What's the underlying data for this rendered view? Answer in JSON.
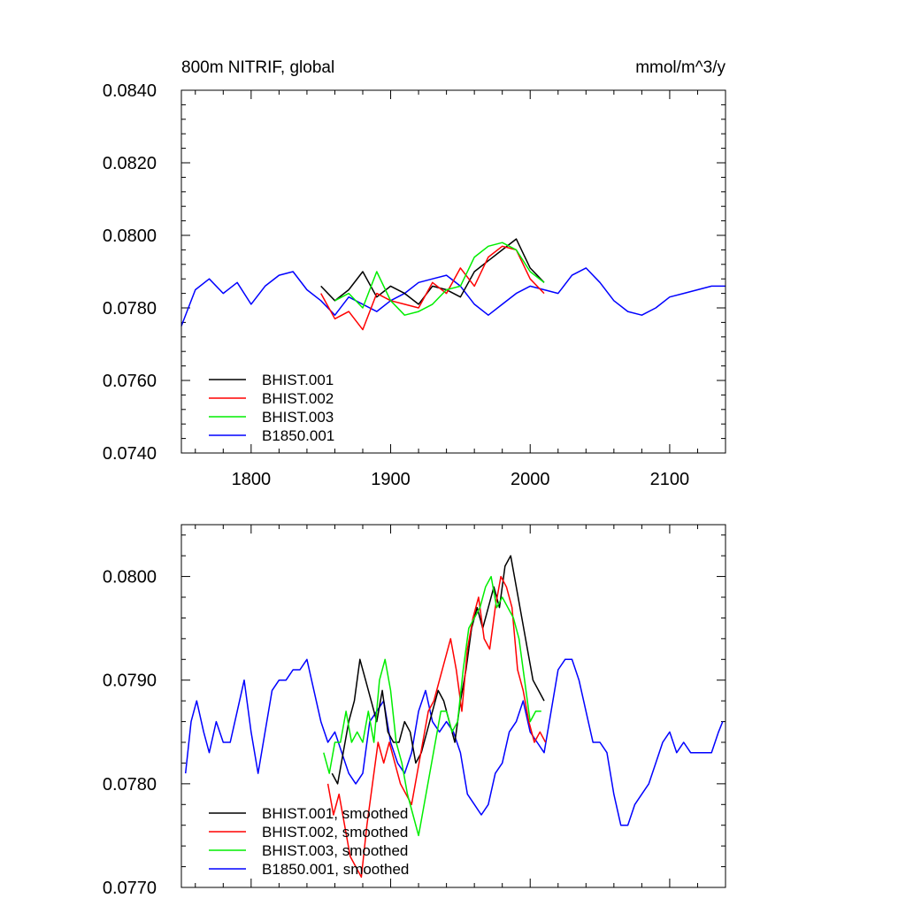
{
  "chart_data": [
    {
      "type": "line",
      "title": "800m NITRIF, global",
      "units": "mmol/m^3/y",
      "xlim": [
        1750,
        2140
      ],
      "ylim": [
        0.074,
        0.084
      ],
      "x_ticks": [
        1800,
        1900,
        2000,
        2100
      ],
      "x_tick_labels": [
        "1800",
        "1900",
        "2000",
        "2100"
      ],
      "y_ticks": [
        0.074,
        0.076,
        0.078,
        0.08,
        0.082,
        0.084
      ],
      "y_tick_labels": [
        "0.0740",
        "0.0760",
        "0.0780",
        "0.0800",
        "0.0820",
        "0.0840"
      ],
      "grid": false,
      "legend_position": "bottom-left",
      "series": [
        {
          "name": "B1850.001",
          "color": "#0000ff",
          "x": [
            1750,
            1760,
            1770,
            1780,
            1790,
            1800,
            1810,
            1820,
            1830,
            1840,
            1850,
            1860,
            1870,
            1880,
            1890,
            1900,
            1910,
            1920,
            1930,
            1940,
            1950,
            1960,
            1970,
            1980,
            1990,
            2000,
            2010,
            2020,
            2030,
            2040,
            2050,
            2060,
            2070,
            2080,
            2090,
            2100,
            2110,
            2120,
            2130,
            2140
          ],
          "y": [
            0.0775,
            0.0785,
            0.0788,
            0.0784,
            0.0787,
            0.0781,
            0.0786,
            0.0789,
            0.079,
            0.0785,
            0.0782,
            0.0778,
            0.0783,
            0.0781,
            0.0779,
            0.0782,
            0.0784,
            0.0787,
            0.0788,
            0.0789,
            0.0786,
            0.0781,
            0.0778,
            0.0781,
            0.0784,
            0.0786,
            0.0785,
            0.0784,
            0.0789,
            0.0791,
            0.0787,
            0.0782,
            0.0779,
            0.0778,
            0.078,
            0.0783,
            0.0784,
            0.0785,
            0.0786,
            0.0786
          ]
        },
        {
          "name": "BHIST.001",
          "color": "#000000",
          "x": [
            1850,
            1860,
            1870,
            1880,
            1890,
            1900,
            1910,
            1920,
            1930,
            1940,
            1950,
            1960,
            1970,
            1980,
            1990,
            2000,
            2010
          ],
          "y": [
            0.0786,
            0.0782,
            0.0785,
            0.079,
            0.0783,
            0.0786,
            0.0784,
            0.0781,
            0.0786,
            0.0785,
            0.0783,
            0.079,
            0.0793,
            0.0796,
            0.0799,
            0.0791,
            0.0787
          ]
        },
        {
          "name": "BHIST.002",
          "color": "#ff0000",
          "x": [
            1850,
            1860,
            1870,
            1880,
            1890,
            1900,
            1910,
            1920,
            1930,
            1940,
            1950,
            1960,
            1970,
            1980,
            1990,
            2000,
            2010
          ],
          "y": [
            0.0784,
            0.0777,
            0.0779,
            0.0774,
            0.0784,
            0.0782,
            0.0781,
            0.078,
            0.0787,
            0.0784,
            0.0791,
            0.0786,
            0.0794,
            0.0797,
            0.0796,
            0.0788,
            0.0784
          ]
        },
        {
          "name": "BHIST.003",
          "color": "#00ee00",
          "x": [
            1860,
            1870,
            1880,
            1890,
            1900,
            1910,
            1920,
            1930,
            1940,
            1950,
            1960,
            1970,
            1980,
            1990,
            2000,
            2010
          ],
          "y": [
            0.0782,
            0.0784,
            0.078,
            0.079,
            0.0782,
            0.0778,
            0.0779,
            0.0781,
            0.0785,
            0.0786,
            0.0794,
            0.0797,
            0.0798,
            0.0796,
            0.079,
            0.0787
          ]
        }
      ],
      "legend_entries": [
        {
          "label": "BHIST.001",
          "color": "#000000"
        },
        {
          "label": "BHIST.002",
          "color": "#ff0000"
        },
        {
          "label": "BHIST.003",
          "color": "#00ee00"
        },
        {
          "label": "B1850.001",
          "color": "#0000ff"
        }
      ]
    },
    {
      "type": "line",
      "xlim": [
        1750,
        2140
      ],
      "ylim": [
        0.077,
        0.0805
      ],
      "y_ticks": [
        0.077,
        0.078,
        0.079,
        0.08
      ],
      "y_tick_labels": [
        "0.0770",
        "0.0780",
        "0.0790",
        "0.0800"
      ],
      "x_ticks": [
        1800,
        1900,
        2000,
        2100
      ],
      "grid": false,
      "legend_position": "bottom-left",
      "series": [
        {
          "name": "B1850.001, smoothed",
          "color": "#0000ff",
          "x": [
            1753,
            1757,
            1761,
            1766,
            1770,
            1775,
            1780,
            1785,
            1790,
            1795,
            1800,
            1805,
            1810,
            1815,
            1820,
            1825,
            1830,
            1835,
            1840,
            1845,
            1850,
            1855,
            1860,
            1865,
            1870,
            1875,
            1880,
            1885,
            1890,
            1895,
            1900,
            1905,
            1910,
            1915,
            1920,
            1925,
            1930,
            1935,
            1940,
            1945,
            1950,
            1955,
            1960,
            1965,
            1970,
            1975,
            1980,
            1985,
            1990,
            1995,
            2000,
            2005,
            2010,
            2015,
            2020,
            2025,
            2030,
            2035,
            2040,
            2045,
            2050,
            2055,
            2060,
            2065,
            2070,
            2075,
            2080,
            2085,
            2090,
            2095,
            2100,
            2105,
            2110,
            2115,
            2120,
            2125,
            2130,
            2135,
            2138
          ],
          "y": [
            0.0781,
            0.0786,
            0.0788,
            0.0785,
            0.0783,
            0.0786,
            0.0784,
            0.0784,
            0.0787,
            0.079,
            0.0785,
            0.0781,
            0.0785,
            0.0789,
            0.079,
            0.079,
            0.0791,
            0.0791,
            0.0792,
            0.0789,
            0.0786,
            0.0784,
            0.0785,
            0.0783,
            0.0781,
            0.078,
            0.0781,
            0.0786,
            0.0787,
            0.0788,
            0.0784,
            0.0782,
            0.0781,
            0.0783,
            0.0787,
            0.0789,
            0.0786,
            0.0785,
            0.0786,
            0.0785,
            0.0783,
            0.0779,
            0.0778,
            0.0777,
            0.0778,
            0.0781,
            0.0782,
            0.0785,
            0.0786,
            0.0788,
            0.0785,
            0.0784,
            0.0783,
            0.0787,
            0.0791,
            0.0792,
            0.0792,
            0.079,
            0.0787,
            0.0784,
            0.0784,
            0.0783,
            0.0779,
            0.0776,
            0.0776,
            0.0778,
            0.0779,
            0.078,
            0.0782,
            0.0784,
            0.0785,
            0.0783,
            0.0784,
            0.0783,
            0.0783,
            0.0783,
            0.0783,
            0.0785,
            0.0786
          ]
        },
        {
          "name": "BHIST.001, smoothed",
          "color": "#000000",
          "x": [
            1858,
            1862,
            1866,
            1870,
            1874,
            1878,
            1882,
            1886,
            1890,
            1894,
            1898,
            1902,
            1906,
            1910,
            1914,
            1918,
            1922,
            1926,
            1930,
            1934,
            1938,
            1942,
            1946,
            1950,
            1954,
            1958,
            1962,
            1966,
            1970,
            1974,
            1978,
            1982,
            1986,
            1990,
            1994,
            1998,
            2002,
            2006,
            2010
          ],
          "y": [
            0.0781,
            0.078,
            0.0783,
            0.0786,
            0.0788,
            0.0792,
            0.079,
            0.0788,
            0.0786,
            0.0789,
            0.0785,
            0.0784,
            0.0784,
            0.0786,
            0.0785,
            0.0782,
            0.0783,
            0.0785,
            0.0787,
            0.0789,
            0.0788,
            0.0786,
            0.0784,
            0.0788,
            0.0791,
            0.0795,
            0.0797,
            0.0795,
            0.0797,
            0.0799,
            0.0797,
            0.0801,
            0.0802,
            0.0799,
            0.0796,
            0.0793,
            0.079,
            0.0789,
            0.0788
          ]
        },
        {
          "name": "BHIST.002, smoothed",
          "color": "#ff0000",
          "x": [
            1855,
            1859,
            1863,
            1867,
            1871,
            1875,
            1879,
            1883,
            1887,
            1891,
            1895,
            1899,
            1903,
            1907,
            1911,
            1915,
            1919,
            1923,
            1927,
            1931,
            1935,
            1939,
            1943,
            1947,
            1951,
            1955,
            1959,
            1963,
            1967,
            1971,
            1975,
            1979,
            1983,
            1987,
            1991,
            1995,
            1999,
            2003,
            2007,
            2011
          ],
          "y": [
            0.078,
            0.0777,
            0.0779,
            0.0776,
            0.0773,
            0.0772,
            0.0771,
            0.0776,
            0.078,
            0.0784,
            0.0782,
            0.0784,
            0.0782,
            0.078,
            0.0779,
            0.0778,
            0.0781,
            0.0784,
            0.0787,
            0.0788,
            0.079,
            0.0792,
            0.0794,
            0.0791,
            0.0787,
            0.0793,
            0.0796,
            0.0798,
            0.0794,
            0.0793,
            0.0797,
            0.08,
            0.0799,
            0.0797,
            0.0791,
            0.0789,
            0.0786,
            0.0784,
            0.0785,
            0.0784
          ]
        },
        {
          "name": "BHIST.003, smoothed",
          "color": "#00ee00",
          "x": [
            1852,
            1856,
            1860,
            1864,
            1868,
            1872,
            1876,
            1880,
            1884,
            1888,
            1892,
            1896,
            1900,
            1904,
            1908,
            1912,
            1916,
            1920,
            1924,
            1928,
            1932,
            1936,
            1940,
            1944,
            1948,
            1952,
            1956,
            1960,
            1964,
            1968,
            1972,
            1976,
            1980,
            1984,
            1988,
            1992,
            1996,
            2000,
            2004,
            2008
          ],
          "y": [
            0.0783,
            0.0781,
            0.0784,
            0.0784,
            0.0787,
            0.0784,
            0.0785,
            0.0784,
            0.0787,
            0.0784,
            0.079,
            0.0792,
            0.0789,
            0.0784,
            0.0782,
            0.0779,
            0.0777,
            0.0775,
            0.0778,
            0.0781,
            0.0784,
            0.0787,
            0.0787,
            0.0785,
            0.0786,
            0.0791,
            0.0795,
            0.0796,
            0.0797,
            0.0799,
            0.08,
            0.0797,
            0.0798,
            0.0797,
            0.0796,
            0.0794,
            0.079,
            0.0786,
            0.0787,
            0.0787
          ]
        }
      ],
      "legend_entries": [
        {
          "label": "BHIST.001, smoothed",
          "color": "#000000"
        },
        {
          "label": "BHIST.002, smoothed",
          "color": "#ff0000"
        },
        {
          "label": "BHIST.003, smoothed",
          "color": "#00ee00"
        },
        {
          "label": "B1850.001, smoothed",
          "color": "#0000ff"
        }
      ]
    }
  ]
}
